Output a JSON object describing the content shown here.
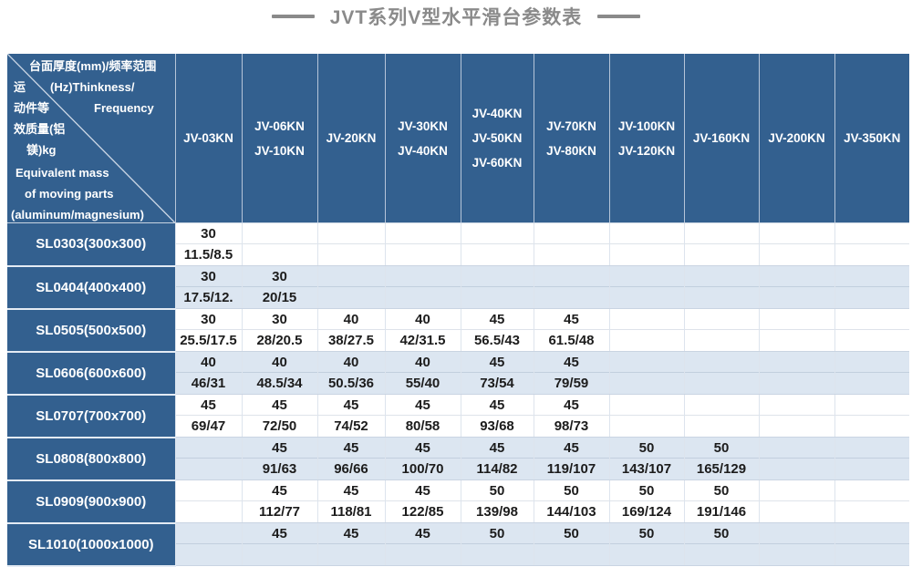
{
  "title": {
    "text": "JVT系列V型水平滑台参数表"
  },
  "corner": {
    "line1": "台面厚度(mm)/频率范围",
    "line2_left": "运",
    "line2_right": "(Hz)Thinkness/",
    "line3_left": "动件等",
    "line3_right": "Frequency",
    "line4": "效质量(铝",
    "line5": "镁)kg",
    "line6": "Equivalent mass",
    "line7": "of moving parts",
    "line8": "(aluminum/magnesium)"
  },
  "columns": [
    {
      "labels": [
        "JV-03KN"
      ]
    },
    {
      "labels": [
        "JV-06KN",
        "JV-10KN"
      ]
    },
    {
      "labels": [
        "JV-20KN"
      ]
    },
    {
      "labels": [
        "JV-30KN",
        "JV-40KN"
      ]
    },
    {
      "labels": [
        "JV-40KN",
        "JV-50KN",
        "JV-60KN"
      ]
    },
    {
      "labels": [
        "JV-70KN",
        "JV-80KN"
      ]
    },
    {
      "labels": [
        "JV-100KN",
        "JV-120KN"
      ]
    },
    {
      "labels": [
        "JV-160KN"
      ]
    },
    {
      "labels": [
        "JV-200KN"
      ]
    },
    {
      "labels": [
        "JV-350KN"
      ]
    }
  ],
  "rows": [
    {
      "label": "SL0303(300x300)",
      "cells": [
        [
          "30",
          "11.5/8.5"
        ],
        [
          "",
          ""
        ],
        [
          "",
          ""
        ],
        [
          "",
          ""
        ],
        [
          "",
          ""
        ],
        [
          "",
          ""
        ],
        [
          "",
          ""
        ],
        [
          "",
          ""
        ],
        [
          "",
          ""
        ],
        [
          "",
          ""
        ]
      ]
    },
    {
      "label": "SL0404(400x400)",
      "cells": [
        [
          "30",
          "17.5/12."
        ],
        [
          "30",
          "20/15"
        ],
        [
          "",
          ""
        ],
        [
          "",
          ""
        ],
        [
          "",
          ""
        ],
        [
          "",
          ""
        ],
        [
          "",
          ""
        ],
        [
          "",
          ""
        ],
        [
          "",
          ""
        ],
        [
          "",
          ""
        ]
      ]
    },
    {
      "label": "SL0505(500x500)",
      "cells": [
        [
          "30",
          "25.5/17.5"
        ],
        [
          "30",
          "28/20.5"
        ],
        [
          "40",
          "38/27.5"
        ],
        [
          "40",
          "42/31.5"
        ],
        [
          "45",
          "56.5/43"
        ],
        [
          "45",
          "61.5/48"
        ],
        [
          "",
          ""
        ],
        [
          "",
          ""
        ],
        [
          "",
          ""
        ],
        [
          "",
          ""
        ]
      ]
    },
    {
      "label": "SL0606(600x600)",
      "cells": [
        [
          "40",
          "46/31"
        ],
        [
          "40",
          "48.5/34"
        ],
        [
          "40",
          "50.5/36"
        ],
        [
          "40",
          "55/40"
        ],
        [
          "45",
          "73/54"
        ],
        [
          "45",
          "79/59"
        ],
        [
          "",
          ""
        ],
        [
          "",
          ""
        ],
        [
          "",
          ""
        ],
        [
          "",
          ""
        ]
      ]
    },
    {
      "label": "SL0707(700x700)",
      "cells": [
        [
          "45",
          "69/47"
        ],
        [
          "45",
          "72/50"
        ],
        [
          "45",
          "74/52"
        ],
        [
          "45",
          "80/58"
        ],
        [
          "45",
          "93/68"
        ],
        [
          "45",
          "98/73"
        ],
        [
          "",
          ""
        ],
        [
          "",
          ""
        ],
        [
          "",
          ""
        ],
        [
          "",
          ""
        ]
      ]
    },
    {
      "label": "SL0808(800x800)",
      "cells": [
        [
          "",
          ""
        ],
        [
          "45",
          "91/63"
        ],
        [
          "45",
          "96/66"
        ],
        [
          "45",
          "100/70"
        ],
        [
          "45",
          "114/82"
        ],
        [
          "45",
          "119/107"
        ],
        [
          "50",
          "143/107"
        ],
        [
          "50",
          "165/129"
        ],
        [
          "",
          ""
        ],
        [
          "",
          ""
        ]
      ]
    },
    {
      "label": "SL0909(900x900)",
      "cells": [
        [
          "",
          ""
        ],
        [
          "45",
          "112/77"
        ],
        [
          "45",
          "118/81"
        ],
        [
          "45",
          "122/85"
        ],
        [
          "50",
          "139/98"
        ],
        [
          "50",
          "144/103"
        ],
        [
          "50",
          "169/124"
        ],
        [
          "50",
          "191/146"
        ],
        [
          "",
          ""
        ],
        [
          "",
          ""
        ]
      ]
    },
    {
      "label": "SL1010(1000x1000)",
      "cells": [
        [
          "",
          ""
        ],
        [
          "45",
          ""
        ],
        [
          "45",
          ""
        ],
        [
          "45",
          ""
        ],
        [
          "50",
          ""
        ],
        [
          "50",
          ""
        ],
        [
          "50",
          ""
        ],
        [
          "50",
          ""
        ],
        [
          "",
          ""
        ],
        [
          "",
          ""
        ]
      ]
    }
  ],
  "colors": {
    "header_blue": "#33608f",
    "row_alt_blue": "#dce6f1",
    "title_gray": "#8a8a8a",
    "grid_line": "#c9d4e2",
    "data_text": "#1c1c1c"
  }
}
